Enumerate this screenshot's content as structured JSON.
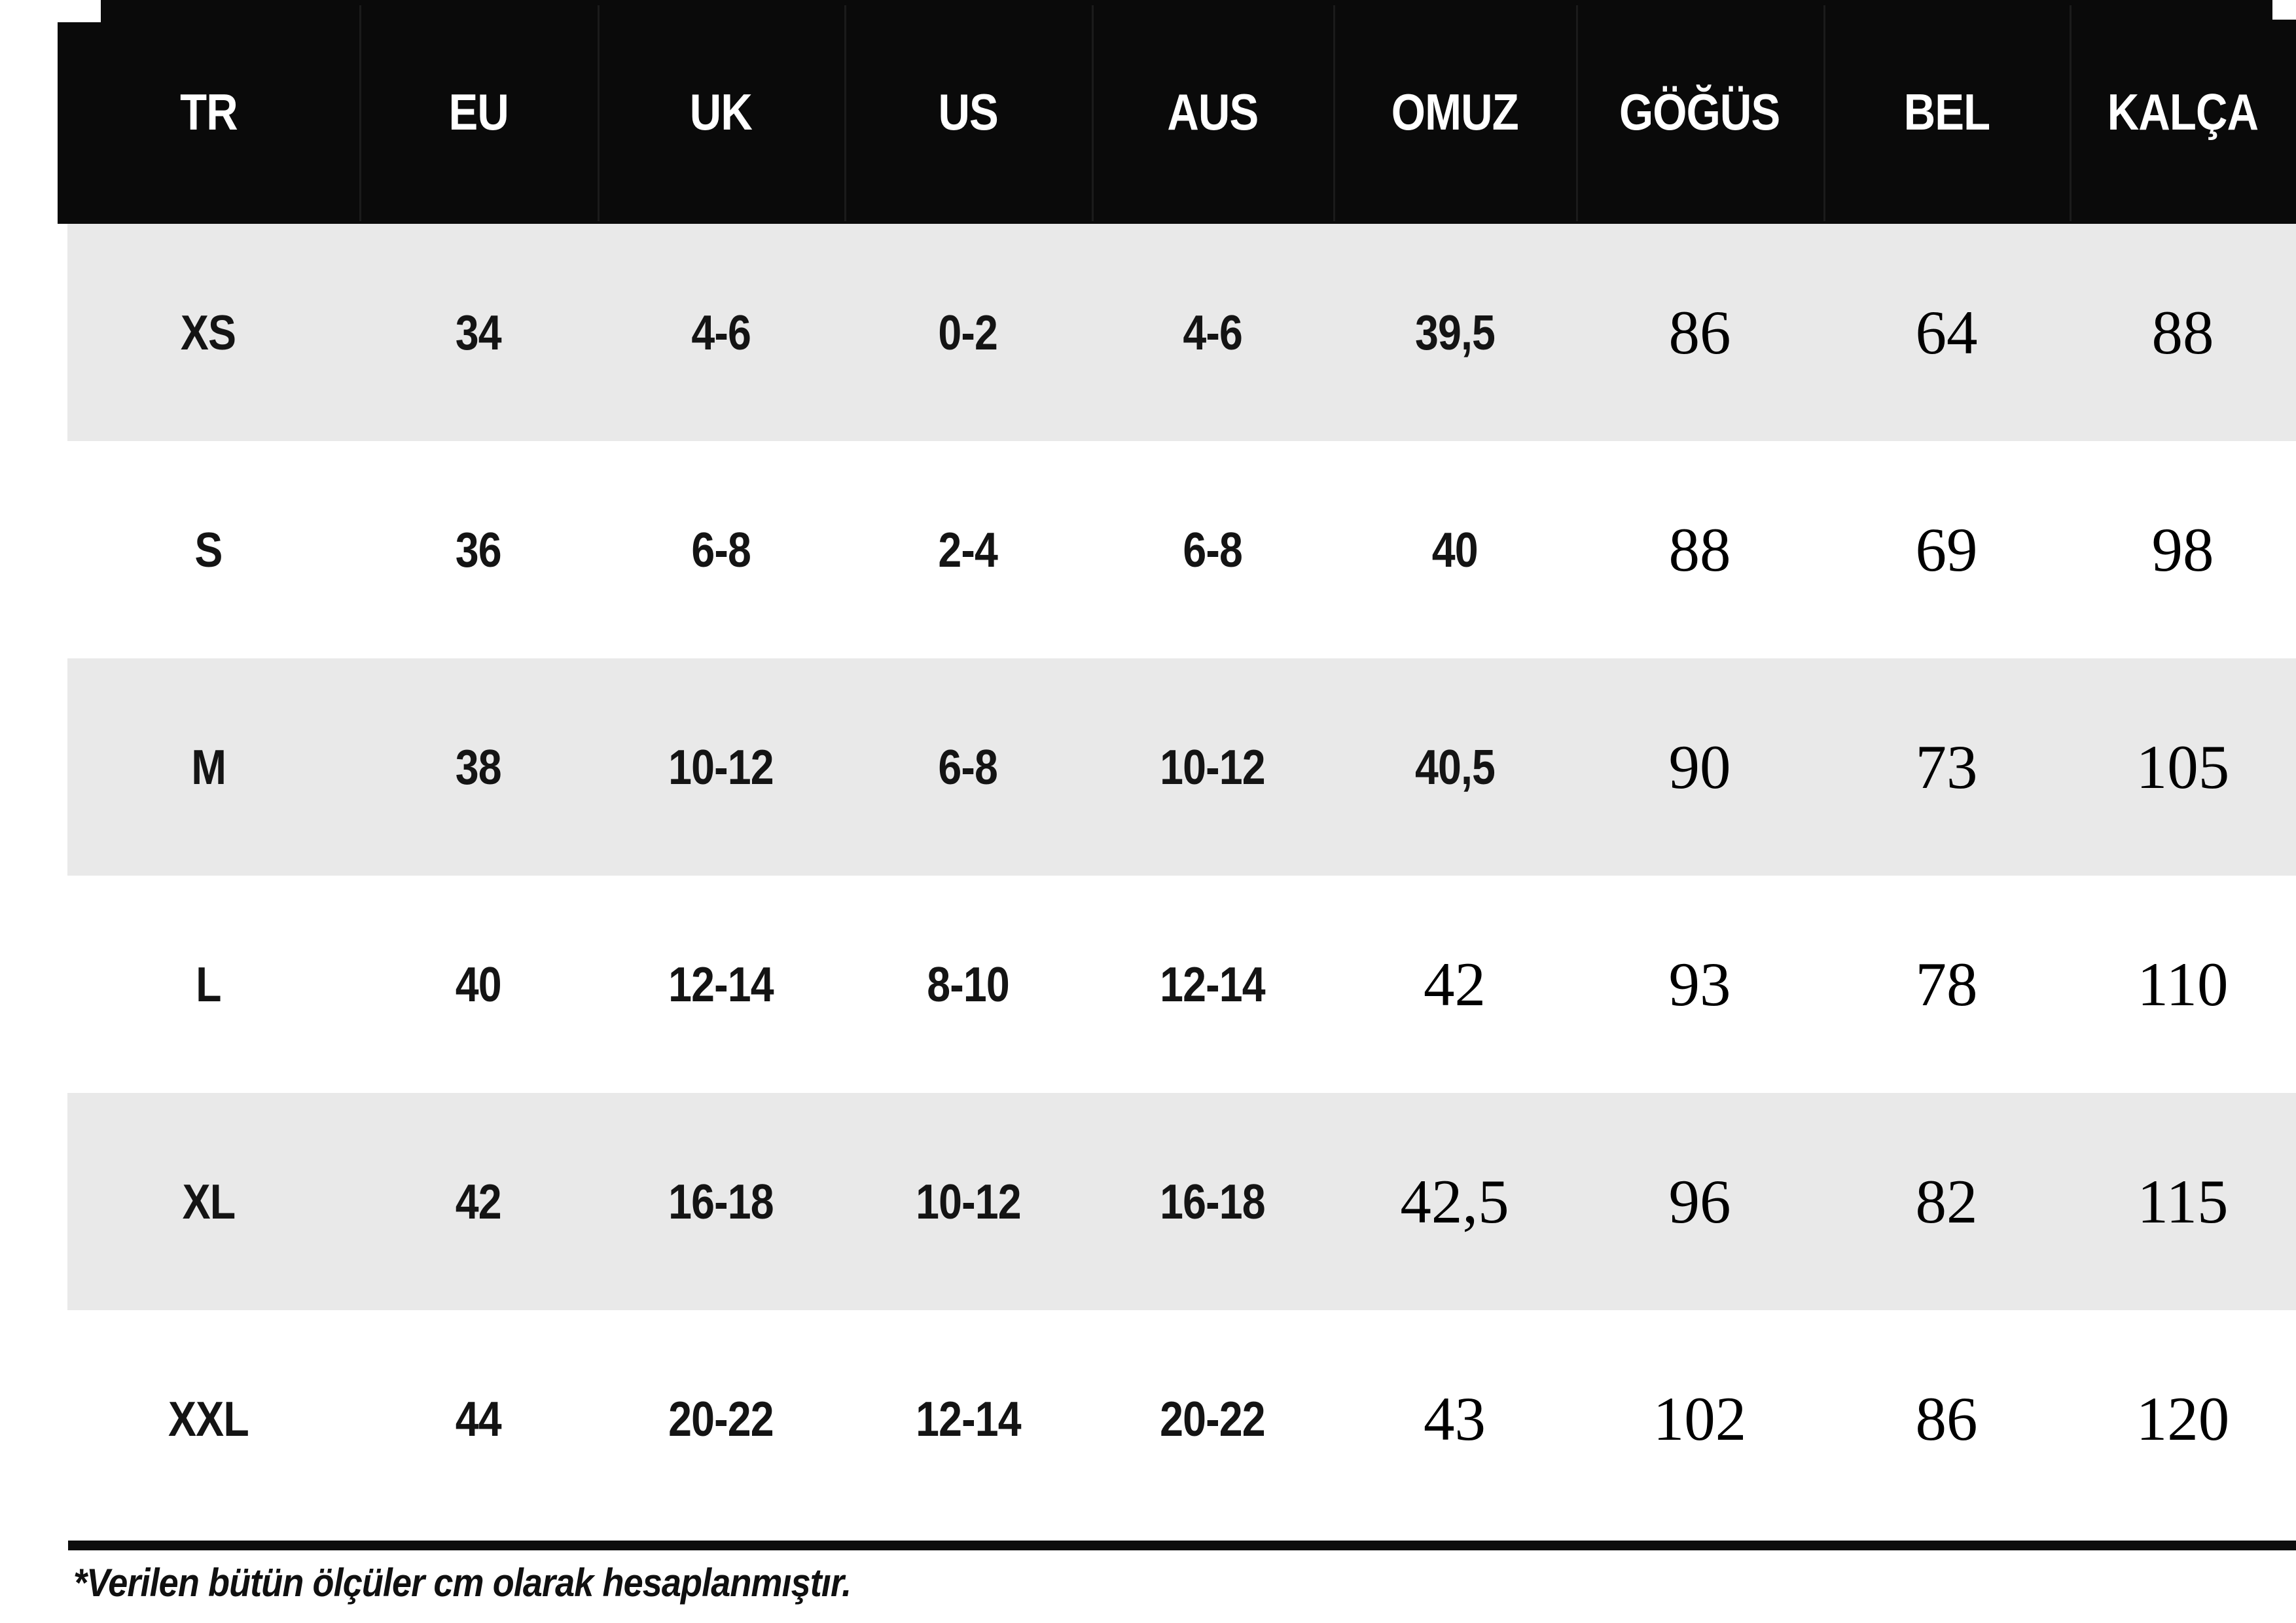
{
  "chart_data": {
    "type": "table",
    "columns": [
      "TR",
      "EU",
      "UK",
      "US",
      "AUS",
      "OMUZ",
      "GÖĞÜS",
      "BEL",
      "KALÇA"
    ],
    "rows": [
      [
        "XS",
        "34",
        "4-6",
        "0-2",
        "4-6",
        "39,5",
        "86",
        "64",
        "88"
      ],
      [
        "S",
        "36",
        "6-8",
        "2-4",
        "6-8",
        "40",
        "88",
        "69",
        "98"
      ],
      [
        "M",
        "38",
        "10-12",
        "6-8",
        "10-12",
        "40,5",
        "90",
        "73",
        "105"
      ],
      [
        "L",
        "40",
        "12-14",
        "8-10",
        "12-14",
        "42",
        "93",
        "78",
        "110"
      ],
      [
        "XL",
        "42",
        "16-18",
        "10-12",
        "16-18",
        "42,5",
        "96",
        "82",
        "115"
      ],
      [
        "XXL",
        "44",
        "20-22",
        "12-14",
        "20-22",
        "43",
        "102",
        "86",
        "120"
      ]
    ],
    "title": "",
    "unit_note": "cm"
  },
  "footnote": "*Verilen bütün ölçüler cm olarak hesaplanmıştır.",
  "colors": {
    "header_bg": "#0a0a0a",
    "header_text": "#ffffff",
    "row_alt_bg": "#e9e9e9",
    "row_bg": "#ffffff",
    "value_text": "#141414",
    "rule": "#0d0d0d"
  }
}
